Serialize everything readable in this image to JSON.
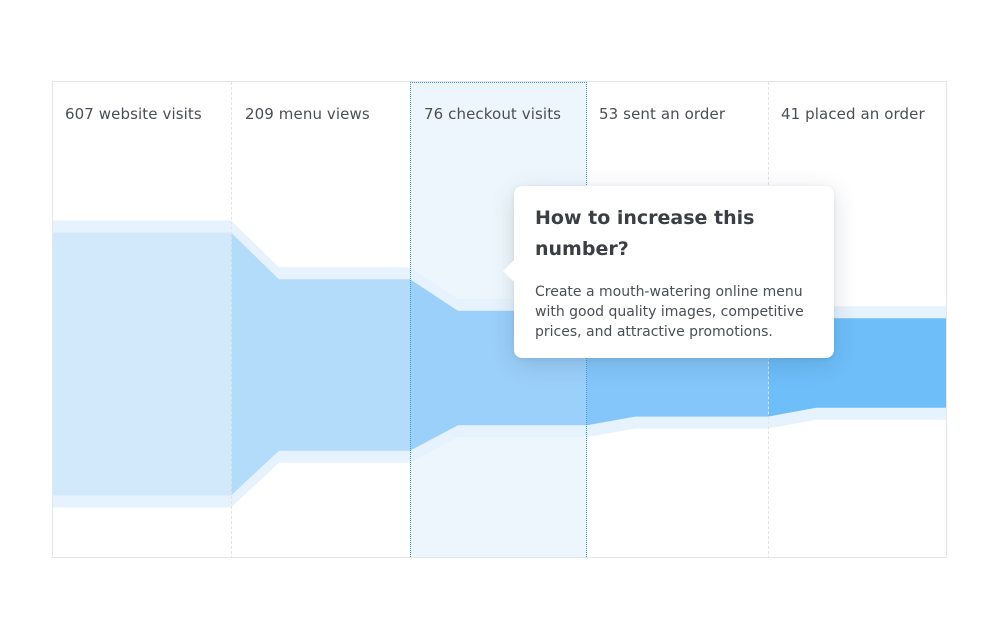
{
  "chart_data": {
    "type": "area",
    "stages": [
      {
        "label": "607 website visits",
        "value": 607
      },
      {
        "label": "209 menu views",
        "value": 209
      },
      {
        "label": "76 checkout visits",
        "value": 76
      },
      {
        "label": "53 sent an order",
        "value": 53
      },
      {
        "label": "41 placed an order",
        "value": 41
      }
    ],
    "highlighted_stage": 2,
    "colors": {
      "halo": "#e6f3fe",
      "stages": [
        "#d2e9fc",
        "#b3dcfb",
        "#9bd0fa",
        "#84c6fa",
        "#6ebef9"
      ],
      "highlight_border": "#3a9ad9",
      "highlight_fill": "#eef6fd"
    }
  },
  "tooltip": {
    "title": "How to increase this number?",
    "body": "Create a mouth-watering online menu with good quality images, competitive prices, and attractive promotions."
  }
}
